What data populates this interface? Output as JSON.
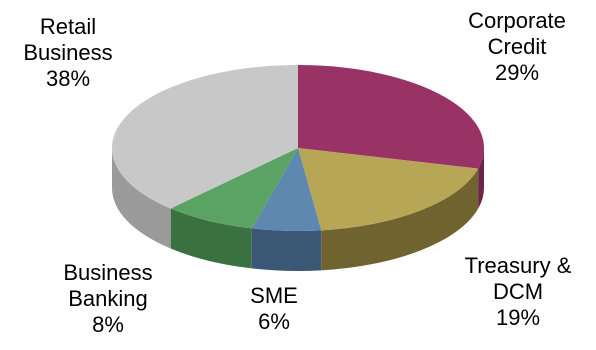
{
  "chart_data": {
    "type": "pie",
    "title": "",
    "slices": [
      {
        "label": [
          "Corporate",
          "Credit"
        ],
        "value": 29,
        "value_text": "29%",
        "color": "#993366",
        "side_color": "#6e2449"
      },
      {
        "label": [
          "Treasury &",
          "DCM"
        ],
        "value": 19,
        "value_text": "19%",
        "color": "#b8a657",
        "side_color": "#6f6430"
      },
      {
        "label": [
          "SME"
        ],
        "value": 6,
        "value_text": "6%",
        "color": "#5e88b0",
        "side_color": "#3a5875"
      },
      {
        "label": [
          "Business",
          "Banking"
        ],
        "value": 8,
        "value_text": "8%",
        "color": "#5aa362",
        "side_color": "#3b7041"
      },
      {
        "label": [
          "Retail",
          "Business"
        ],
        "value": 38,
        "value_text": "38%",
        "color": "#c8c8c8",
        "side_color": "#9a9a9a"
      }
    ],
    "legend": "none",
    "style": "3d"
  }
}
